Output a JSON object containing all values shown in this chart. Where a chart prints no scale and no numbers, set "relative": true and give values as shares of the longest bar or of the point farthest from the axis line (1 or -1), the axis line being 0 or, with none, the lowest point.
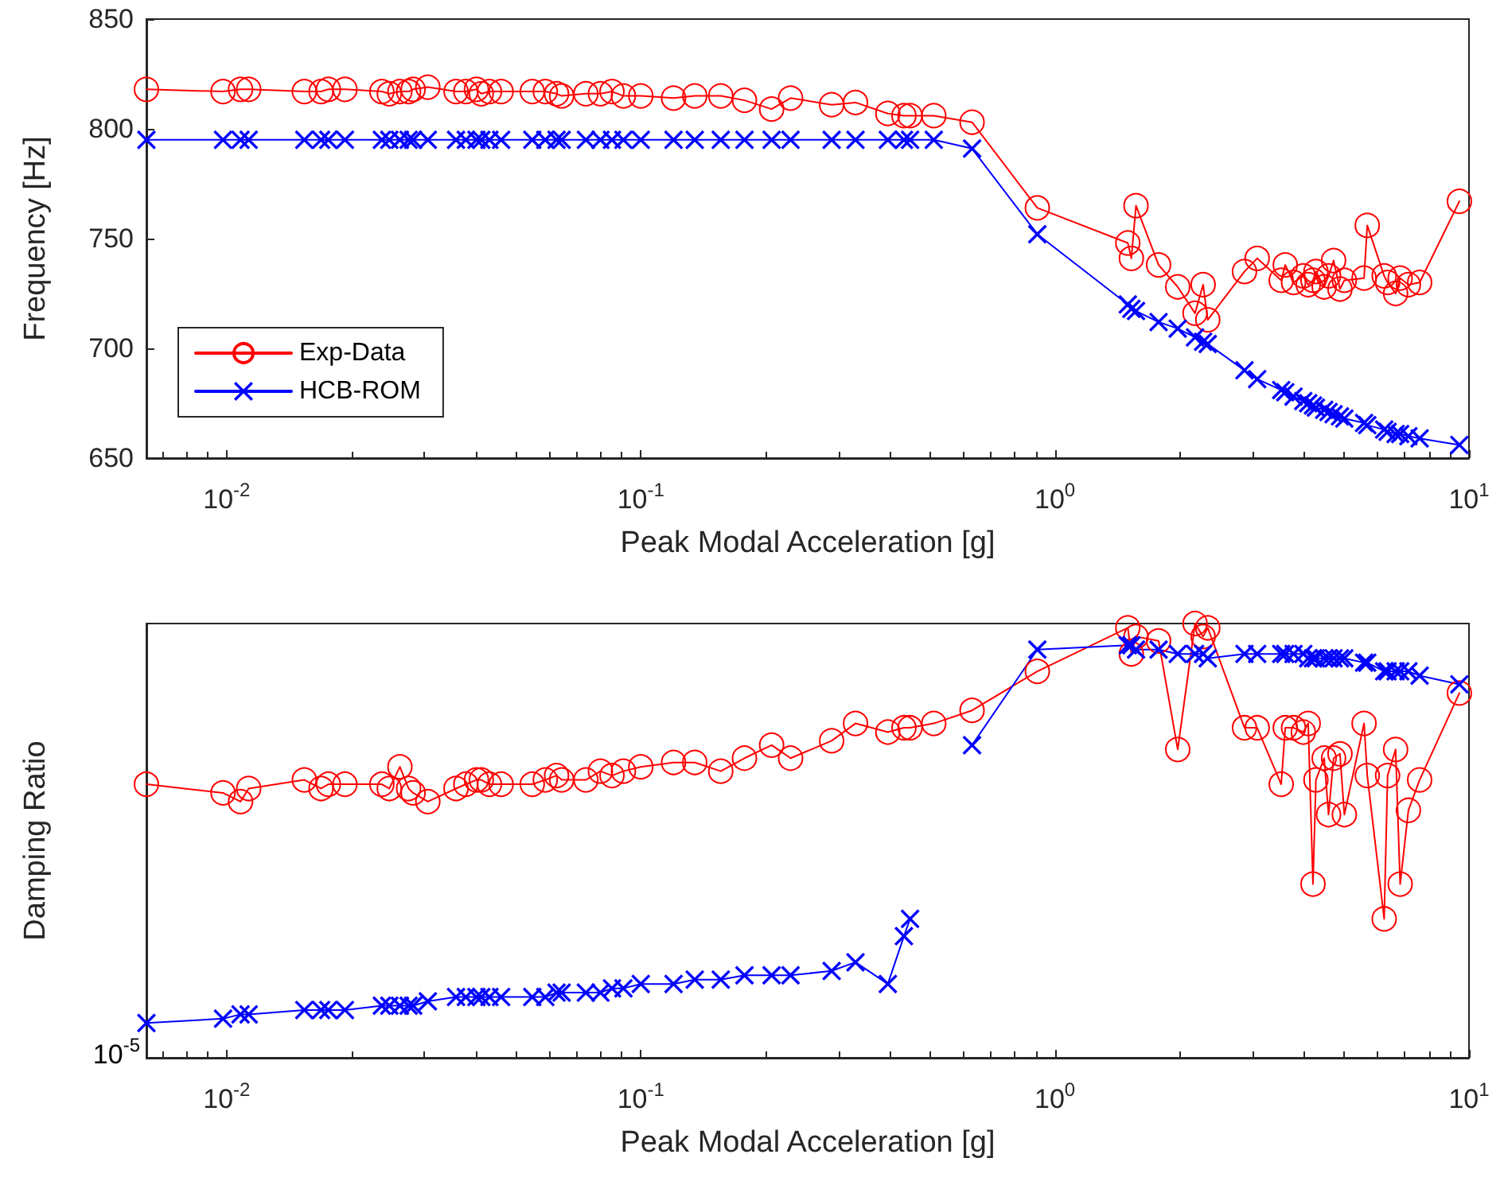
{
  "chart_data": [
    {
      "type": "line",
      "ylabel": "Frequency [Hz]",
      "xlabel": "Peak Modal Acceleration [g]",
      "log": "x",
      "legend": "bottom left",
      "grid": false,
      "xlim": [
        0.0064,
        10
      ],
      "xticks": [
        {
          "value": 0.01,
          "label": "10$^{-2}$"
        },
        {
          "value": 0.1,
          "label": "10$^{-1}$"
        },
        {
          "value": 1,
          "label": "10$^{0}$"
        },
        {
          "value": 10,
          "label": "10$^{1}$"
        }
      ],
      "ylim": [
        650,
        850
      ],
      "yticks": [
        650,
        700,
        750,
        800,
        850
      ],
      "x": [
        0.0064,
        0.0098,
        0.0108,
        0.0113,
        0.0154,
        0.0169,
        0.0176,
        0.0193,
        0.0237,
        0.0247,
        0.0262,
        0.0275,
        0.0282,
        0.0306,
        0.0358,
        0.0378,
        0.0401,
        0.0412,
        0.0431,
        0.046,
        0.0547,
        0.0588,
        0.0626,
        0.0644,
        0.0737,
        0.0799,
        0.0852,
        0.0908,
        0.1,
        0.12,
        0.135,
        0.156,
        0.178,
        0.207,
        0.23,
        0.289,
        0.33,
        0.395,
        0.432,
        0.447,
        0.51,
        0.631,
        0.907,
        1.5,
        1.53,
        1.57,
        1.78,
        1.98,
        2.18,
        2.28,
        2.34,
        2.87,
        3.08,
        3.52,
        3.6,
        3.77,
        3.98,
        4.09,
        4.2,
        4.27,
        4.47,
        4.58,
        4.71,
        4.88,
        5.0,
        5.58,
        5.68,
        6.24,
        6.36,
        6.65,
        6.82,
        7.14,
        7.6,
        9.48
      ],
      "series": [
        {
          "name": "Exp-Data",
          "color": "#ff0000",
          "marker": "circle",
          "values": [
            818,
            817,
            818,
            818,
            817,
            817,
            818,
            818,
            817,
            816,
            817,
            817,
            818,
            819,
            817,
            817,
            818,
            816,
            817,
            817,
            817,
            817,
            816,
            815,
            816,
            816,
            817,
            815,
            815,
            814,
            815,
            815,
            813,
            809,
            814,
            811,
            812,
            807,
            806,
            806,
            806,
            803,
            764,
            748,
            741,
            765,
            738,
            728,
            716,
            729,
            713,
            735,
            741,
            731,
            738,
            730,
            733,
            729,
            731,
            735,
            728,
            733,
            740,
            727,
            731,
            732,
            756,
            733,
            730,
            725,
            732,
            729,
            730,
            767
          ]
        },
        {
          "name": "HCB-ROM",
          "color": "#0000ff",
          "marker": "cross",
          "values": [
            795,
            795,
            795,
            795,
            795,
            795,
            795,
            795,
            795,
            795,
            795,
            795,
            795,
            795,
            795,
            795,
            795,
            795,
            795,
            795,
            795,
            795,
            795,
            795,
            795,
            795,
            795,
            795,
            795,
            795,
            795,
            795,
            795,
            795,
            795,
            795,
            795,
            795,
            795,
            795,
            795,
            791,
            752,
            720,
            718,
            717,
            712,
            709,
            705,
            703,
            702,
            690,
            686,
            681,
            680,
            678,
            676,
            675,
            674,
            673,
            672,
            671,
            670,
            669,
            668,
            666,
            665,
            663,
            662,
            661,
            661,
            660,
            659,
            656
          ]
        }
      ]
    },
    {
      "type": "line",
      "ylabel": "Damping Ratio",
      "xlabel": "Peak Modal Acceleration [g]",
      "log": "x",
      "relative": true,
      "grid": false,
      "annotations": [
        "10$^{-5}$"
      ],
      "xlim": [
        0.0064,
        10
      ],
      "xticks": [
        {
          "value": 0.01,
          "label": "10$^{-2}$"
        },
        {
          "value": 0.1,
          "label": "10$^{-1}$"
        },
        {
          "value": 1,
          "label": "10$^{0}$"
        },
        {
          "value": 10,
          "label": "10$^{1}$"
        }
      ],
      "x": [
        0.0064,
        0.0098,
        0.0108,
        0.0113,
        0.0154,
        0.0169,
        0.0176,
        0.0193,
        0.0237,
        0.0247,
        0.0262,
        0.0275,
        0.0282,
        0.0306,
        0.0358,
        0.0378,
        0.0401,
        0.0412,
        0.0431,
        0.046,
        0.0547,
        0.0588,
        0.0626,
        0.0644,
        0.0737,
        0.0799,
        0.0852,
        0.0908,
        0.1,
        0.12,
        0.135,
        0.156,
        0.178,
        0.207,
        0.23,
        0.289,
        0.33,
        0.395,
        0.432,
        0.447,
        0.51,
        0.631,
        0.907,
        1.5,
        1.53,
        1.57,
        1.78,
        1.98,
        2.18,
        2.28,
        2.34,
        2.87,
        3.08,
        3.52,
        3.6,
        3.77,
        3.98,
        4.09,
        4.2,
        4.27,
        4.47,
        4.58,
        4.71,
        4.88,
        5.0,
        5.58,
        5.68,
        6.24,
        6.36,
        6.65,
        6.82,
        7.14,
        7.6,
        9.48
      ],
      "series": [
        {
          "color": "#ff0000",
          "marker": "circle",
          "values": [
            0.63,
            0.61,
            0.59,
            0.62,
            0.64,
            0.62,
            0.63,
            0.63,
            0.63,
            0.62,
            0.67,
            0.62,
            0.61,
            0.59,
            0.62,
            0.63,
            0.64,
            0.64,
            0.63,
            0.63,
            0.63,
            0.64,
            0.65,
            0.64,
            0.64,
            0.66,
            0.65,
            0.66,
            0.67,
            0.68,
            0.68,
            0.66,
            0.69,
            0.72,
            0.69,
            0.73,
            0.77,
            0.75,
            0.76,
            0.76,
            0.77,
            0.8,
            0.89,
            0.99,
            0.93,
            0.97,
            0.96,
            0.71,
            1,
            0.97,
            0.99,
            0.76,
            0.76,
            0.63,
            0.76,
            0.76,
            0.75,
            0.77,
            0.4,
            0.64,
            0.69,
            0.56,
            0.69,
            0.7,
            0.56,
            0.77,
            0.65,
            0.32,
            0.65,
            0.71,
            0.4,
            0.57,
            0.64,
            0.84
          ]
        },
        {
          "color": "#0000ff",
          "marker": "cross",
          "values": [
            0.08,
            0.09,
            0.1,
            0.1,
            0.11,
            0.11,
            0.11,
            0.11,
            0.12,
            0.12,
            0.12,
            0.12,
            0.12,
            0.13,
            0.14,
            0.14,
            0.14,
            0.14,
            0.14,
            0.14,
            0.14,
            0.14,
            0.15,
            0.15,
            0.15,
            0.15,
            0.16,
            0.16,
            0.17,
            0.17,
            0.18,
            0.18,
            0.19,
            0.19,
            0.19,
            0.2,
            0.22,
            0.17,
            0.28,
            0.32,
            null,
            0.72,
            0.94,
            0.95,
            0.95,
            0.94,
            0.94,
            0.93,
            0.93,
            0.93,
            0.92,
            0.93,
            0.93,
            0.93,
            0.93,
            0.93,
            0.93,
            0.92,
            0.92,
            0.92,
            0.92,
            0.92,
            0.92,
            0.92,
            0.92,
            0.91,
            0.91,
            0.89,
            0.89,
            0.89,
            0.89,
            0.89,
            0.88,
            0.86
          ]
        }
      ]
    }
  ]
}
